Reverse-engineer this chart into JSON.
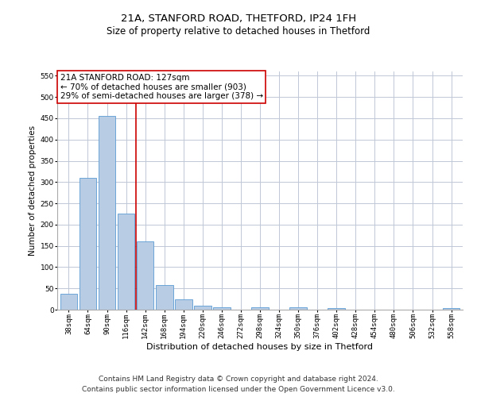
{
  "title1": "21A, STANFORD ROAD, THETFORD, IP24 1FH",
  "title2": "Size of property relative to detached houses in Thetford",
  "xlabel": "Distribution of detached houses by size in Thetford",
  "ylabel": "Number of detached properties",
  "categories": [
    "38sqm",
    "64sqm",
    "90sqm",
    "116sqm",
    "142sqm",
    "168sqm",
    "194sqm",
    "220sqm",
    "246sqm",
    "272sqm",
    "298sqm",
    "324sqm",
    "350sqm",
    "376sqm",
    "402sqm",
    "428sqm",
    "454sqm",
    "480sqm",
    "506sqm",
    "532sqm",
    "558sqm"
  ],
  "values": [
    38,
    310,
    455,
    225,
    160,
    58,
    25,
    10,
    5,
    0,
    5,
    0,
    5,
    0,
    3,
    0,
    0,
    0,
    0,
    0,
    3
  ],
  "bar_color": "#b8cce4",
  "bar_edge_color": "#5b9bd5",
  "vline_x_index": 3.5,
  "vline_color": "#cc0000",
  "ylim": [
    0,
    560
  ],
  "yticks": [
    0,
    50,
    100,
    150,
    200,
    250,
    300,
    350,
    400,
    450,
    500,
    550
  ],
  "annotation_box_text": "21A STANFORD ROAD: 127sqm\n← 70% of detached houses are smaller (903)\n29% of semi-detached houses are larger (378) →",
  "annotation_box_color": "#cc0000",
  "footer_line1": "Contains HM Land Registry data © Crown copyright and database right 2024.",
  "footer_line2": "Contains public sector information licensed under the Open Government Licence v3.0.",
  "bg_color": "#ffffff",
  "grid_color": "#c0c8d8",
  "title1_fontsize": 9.5,
  "title2_fontsize": 8.5,
  "xlabel_fontsize": 8,
  "ylabel_fontsize": 7.5,
  "tick_fontsize": 6.5,
  "annotation_fontsize": 7.5,
  "footer_fontsize": 6.5
}
